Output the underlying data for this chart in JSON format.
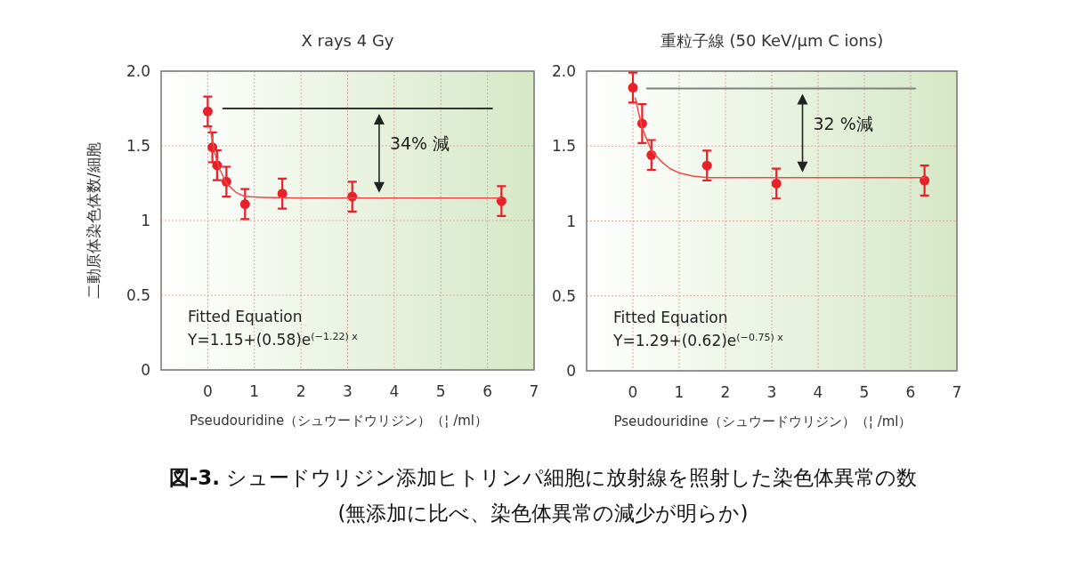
{
  "chart_data": [
    {
      "type": "scatter",
      "title": "X rays 4 Gy",
      "xlabel": "Pseudouridine（シュウードウリジン）（¦ /ml）",
      "ylabel": "二動原体染色体数/細胞",
      "xlim": [
        -1,
        7
      ],
      "ylim": [
        0,
        2
      ],
      "xticks": [
        0,
        1,
        2,
        3,
        4,
        5,
        6,
        7
      ],
      "yticks": [
        0,
        0.5,
        1,
        1.5,
        {
          "value": 2,
          "label": "2.0"
        }
      ],
      "grid": true,
      "series": [
        {
          "type": "scatter",
          "marker": "circle",
          "color": "#e8202a",
          "x": [
            0,
            0.1,
            0.2,
            0.4,
            0.8,
            1.6,
            3.1,
            6.3
          ],
          "values": [
            1.73,
            1.49,
            1.37,
            1.26,
            1.11,
            1.18,
            1.16,
            1.13
          ],
          "errors": [
            0.1,
            0.1,
            0.1,
            0.1,
            0.1,
            0.1,
            0.1,
            0.1
          ]
        },
        {
          "type": "line",
          "color": "#f04848",
          "x": [
            0.05,
            0.15,
            0.25,
            0.4,
            0.6,
            0.8,
            1.2,
            2,
            6.3
          ],
          "values": [
            1.62,
            1.45,
            1.35,
            1.25,
            1.19,
            1.16,
            1.155,
            1.15,
            1.15
          ]
        },
        {
          "type": "line",
          "color": "#333333",
          "x": [
            0.33,
            6.1
          ],
          "values": [
            1.75,
            1.75
          ]
        }
      ],
      "annotations": [
        "34% 減",
        "Fitted Equation",
        "Y=1.15+(0.58)e$^{(−1.22) x}$"
      ]
    },
    {
      "type": "scatter",
      "title": "重粒子線 (50 KeV/μm C ions)",
      "xlabel": "Pseudouridine（シュウードウリジン）（¦ /ml）",
      "xlim": [
        -1,
        7
      ],
      "ylim": [
        0,
        2
      ],
      "xticks": [
        0,
        1,
        2,
        3,
        4,
        5,
        6,
        7
      ],
      "yticks": [
        0,
        0.5,
        1,
        1.5,
        {
          "value": 2,
          "label": "2.0"
        }
      ],
      "grid": true,
      "series": [
        {
          "type": "scatter",
          "marker": "circle",
          "color": "#e8202a",
          "x": [
            0,
            0.2,
            0.4,
            1.6,
            3.1,
            6.3
          ],
          "values": [
            1.89,
            1.65,
            1.44,
            1.37,
            1.25,
            1.27
          ],
          "errors": [
            0.1,
            0.13,
            0.1,
            0.1,
            0.1,
            0.1
          ]
        },
        {
          "type": "line",
          "color": "#f04848",
          "x": [
            0.05,
            0.2,
            0.4,
            0.6,
            0.8,
            1.0,
            1.3,
            1.6,
            6.3
          ],
          "values": [
            1.82,
            1.62,
            1.47,
            1.4,
            1.35,
            1.32,
            1.3,
            1.29,
            1.29
          ]
        },
        {
          "type": "line",
          "color": "#808080",
          "x": [
            0.3,
            6.1
          ],
          "values": [
            1.885,
            1.885
          ]
        }
      ],
      "annotations": [
        "32 %減",
        "Fitted Equation",
        "Y=1.29+(0.62)e$^{(−0.75) x}$"
      ]
    },
    {
      "type": "other",
      "title": "図-3. シュードウリジン添加ヒトリンパ細胞に放射線を照射した染色体異常の数",
      "subtitle": "(無添加に比べ、染色体異常の減少が明らか)"
    }
  ]
}
